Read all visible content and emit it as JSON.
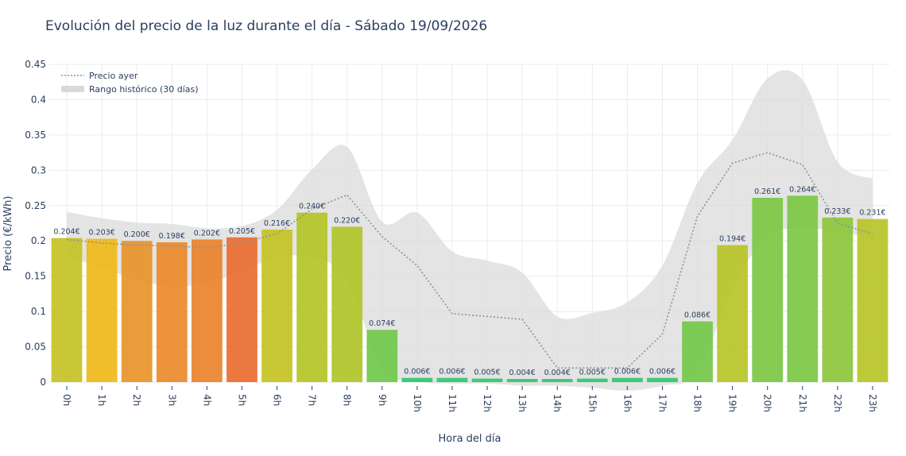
{
  "chart_data": {
    "type": "bar",
    "title": "Evolución del precio de la luz durante el día - Sábado 19/09/2026",
    "xlabel": "Hora del día",
    "ylabel": "Precio (€/kWh)",
    "ylim": [
      0,
      0.45
    ],
    "yticks": [
      {
        "value": 0,
        "label": "0"
      },
      {
        "value": 0.05,
        "label": "0.05"
      },
      {
        "value": 0.1,
        "label": "0.1"
      },
      {
        "value": 0.15,
        "label": "0.15"
      },
      {
        "value": 0.2,
        "label": "0.2"
      },
      {
        "value": 0.25,
        "label": "0.25"
      },
      {
        "value": 0.3,
        "label": "0.3"
      },
      {
        "value": 0.35,
        "label": "0.35"
      },
      {
        "value": 0.4,
        "label": "0.4"
      },
      {
        "value": 0.45,
        "label": "0.45"
      }
    ],
    "categories": [
      "0h",
      "1h",
      "2h",
      "3h",
      "4h",
      "5h",
      "6h",
      "7h",
      "8h",
      "9h",
      "10h",
      "11h",
      "12h",
      "13h",
      "14h",
      "15h",
      "16h",
      "17h",
      "18h",
      "19h",
      "20h",
      "21h",
      "22h",
      "23h"
    ],
    "values": [
      0.204,
      0.203,
      0.2,
      0.198,
      0.202,
      0.205,
      0.216,
      0.24,
      0.22,
      0.074,
      0.006,
      0.006,
      0.005,
      0.004,
      0.004,
      0.005,
      0.006,
      0.006,
      0.086,
      0.194,
      0.261,
      0.264,
      0.233,
      0.231
    ],
    "data_labels": [
      "0.204€",
      "0.203€",
      "0.200€",
      "0.198€",
      "0.202€",
      "0.205€",
      "0.216€",
      "0.240€",
      "0.220€",
      "0.074€",
      "0.006€",
      "0.006€",
      "0.005€",
      "0.004€",
      "0.004€",
      "0.005€",
      "0.006€",
      "0.006€",
      "0.086€",
      "0.194€",
      "0.261€",
      "0.264€",
      "0.233€",
      "0.231€"
    ],
    "bar_colors": [
      "#c4c224",
      "#f0b919",
      "#e8942a",
      "#ea8a2a",
      "#e9832b",
      "#e96d2e",
      "#c6c224",
      "#b4c426",
      "#b0c428",
      "#70c84a",
      "#2fc870",
      "#2fc870",
      "#2fc870",
      "#2fc870",
      "#2fc870",
      "#2fc870",
      "#2fc870",
      "#2fc870",
      "#74c84a",
      "#b8c428",
      "#7cc844",
      "#7cc844",
      "#8cc63c",
      "#b8c428"
    ],
    "series": [
      {
        "name": "Precio ayer",
        "style": "dotted-line",
        "color": "#8a9299",
        "values": [
          0.202,
          0.197,
          0.194,
          0.193,
          0.19,
          0.197,
          0.21,
          0.245,
          0.265,
          0.206,
          0.165,
          0.097,
          0.093,
          0.089,
          0.02,
          0.02,
          0.02,
          0.068,
          0.235,
          0.31,
          0.325,
          0.308,
          0.225,
          0.21
        ]
      },
      {
        "name": "Rango histórico (30 días)",
        "style": "band",
        "color": "#d9d9d9",
        "upper": [
          0.241,
          0.232,
          0.226,
          0.224,
          0.218,
          0.221,
          0.244,
          0.301,
          0.333,
          0.227,
          0.24,
          0.185,
          0.172,
          0.155,
          0.093,
          0.098,
          0.113,
          0.165,
          0.282,
          0.343,
          0.43,
          0.428,
          0.312,
          0.288
        ],
        "lower": [
          0.178,
          0.162,
          0.145,
          0.136,
          0.14,
          0.157,
          0.176,
          0.177,
          0.145,
          0.019,
          0.001,
          -0.002,
          -0.002,
          -0.005,
          -0.005,
          -0.008,
          -0.012,
          -0.005,
          0.014,
          0.134,
          0.206,
          0.218,
          0.213,
          0.204
        ]
      }
    ],
    "legend_position": "top-left",
    "grid": true
  },
  "legend": {
    "yesterday_label": "Precio ayer",
    "range_label": "Rango histórico (30 días)"
  }
}
